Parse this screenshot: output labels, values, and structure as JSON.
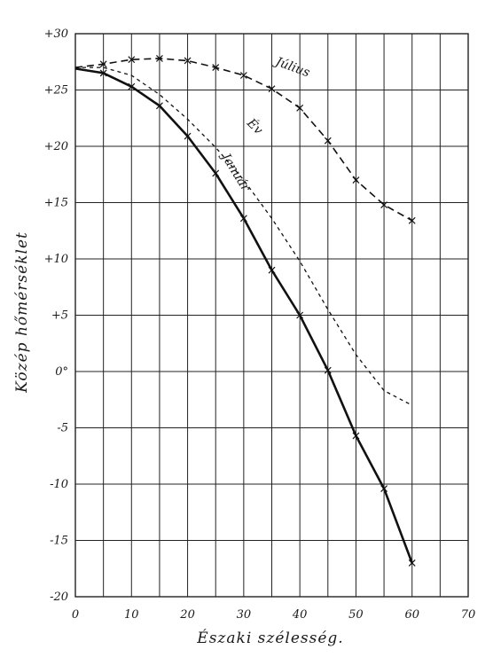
{
  "chart_data": {
    "type": "line",
    "title": "",
    "xlabel": "Északi szélesség.",
    "ylabel": "Közép hőmérséklet",
    "xlim": [
      0,
      70
    ],
    "ylim": [
      -20,
      30
    ],
    "grid": true,
    "x_ticks": [
      "0",
      "10",
      "20",
      "30",
      "40",
      "50",
      "60",
      "70"
    ],
    "y_ticks": [
      "+30",
      "+25",
      "+20",
      "+15",
      "+10",
      "+5",
      "0°",
      "-5",
      "-10",
      "-15",
      "-20"
    ],
    "series": [
      {
        "name": "Július",
        "style": "dashed",
        "x": [
          0,
          5,
          10,
          15,
          20,
          25,
          30,
          35,
          40,
          45,
          50,
          55,
          60
        ],
        "y": [
          27.0,
          27.3,
          27.7,
          27.8,
          27.6,
          27.0,
          26.3,
          25.1,
          23.4,
          20.5,
          17.0,
          14.8,
          13.4
        ]
      },
      {
        "name": "Év",
        "style": "dotted",
        "x": [
          0,
          5,
          10,
          15,
          20,
          25,
          30,
          35,
          40,
          45,
          50,
          55,
          60
        ],
        "y": [
          27.0,
          27.0,
          26.3,
          24.6,
          22.4,
          19.9,
          17.0,
          13.6,
          9.8,
          5.5,
          1.5,
          -1.7,
          -3.0
        ]
      },
      {
        "name": "Január",
        "style": "solid",
        "x": [
          0,
          5,
          10,
          15,
          20,
          25,
          30,
          35,
          40,
          45,
          50,
          55,
          60
        ],
        "y": [
          26.9,
          26.5,
          25.3,
          23.6,
          20.9,
          17.6,
          13.6,
          9.0,
          5.0,
          0.1,
          -5.7,
          -10.4,
          -17.0
        ]
      }
    ]
  }
}
